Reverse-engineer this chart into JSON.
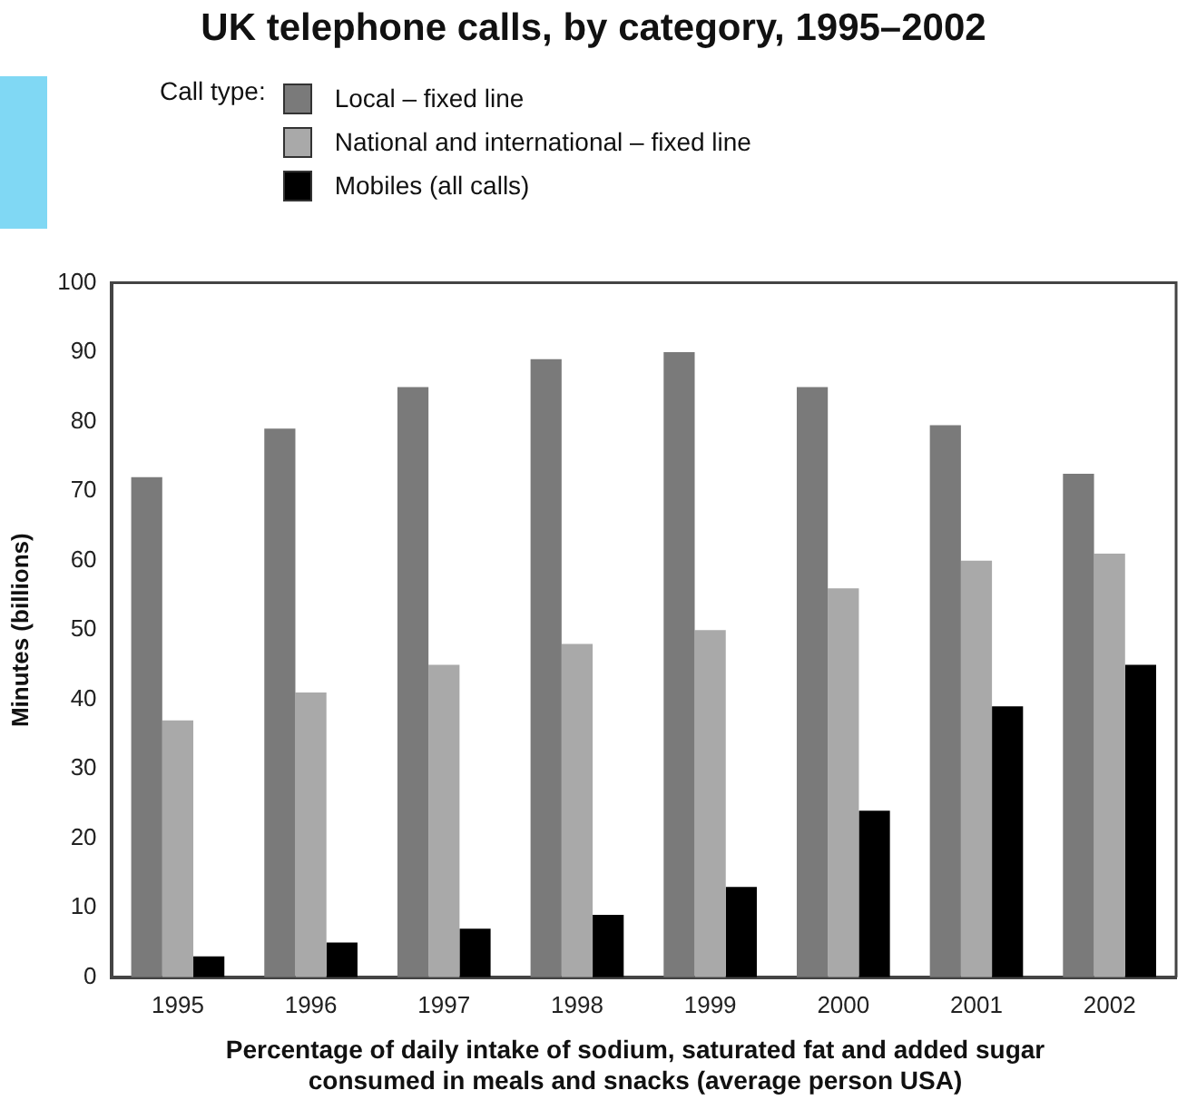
{
  "chart_data": {
    "type": "bar",
    "title": "UK telephone calls, by category, 1995–2002",
    "legend_title": "Call type:",
    "legend": "top",
    "xlabel": "Percentage of daily intake of sodium, saturated fat and added sugar consumed in meals and snacks (average person USA)",
    "ylabel": "Minutes (billions)",
    "categories": [
      "1995",
      "1996",
      "1997",
      "1998",
      "1999",
      "2000",
      "2001",
      "2002"
    ],
    "series": [
      {
        "name": "Local – fixed line",
        "color": "#7a7a7a",
        "values": [
          72,
          79,
          85,
          89,
          90,
          85,
          79.5,
          72.5
        ]
      },
      {
        "name": "National and international – fixed line",
        "color": "#a9a9a9",
        "values": [
          37,
          41,
          45,
          48,
          50,
          56,
          60,
          61
        ]
      },
      {
        "name": "Mobiles (all calls)",
        "color": "#000000",
        "values": [
          3,
          5,
          7,
          9,
          13,
          24,
          39,
          45
        ]
      }
    ],
    "ylim": [
      0,
      100
    ],
    "yticks": [
      0,
      10,
      20,
      30,
      40,
      50,
      60,
      70,
      80,
      90,
      100
    ],
    "grid": false
  }
}
